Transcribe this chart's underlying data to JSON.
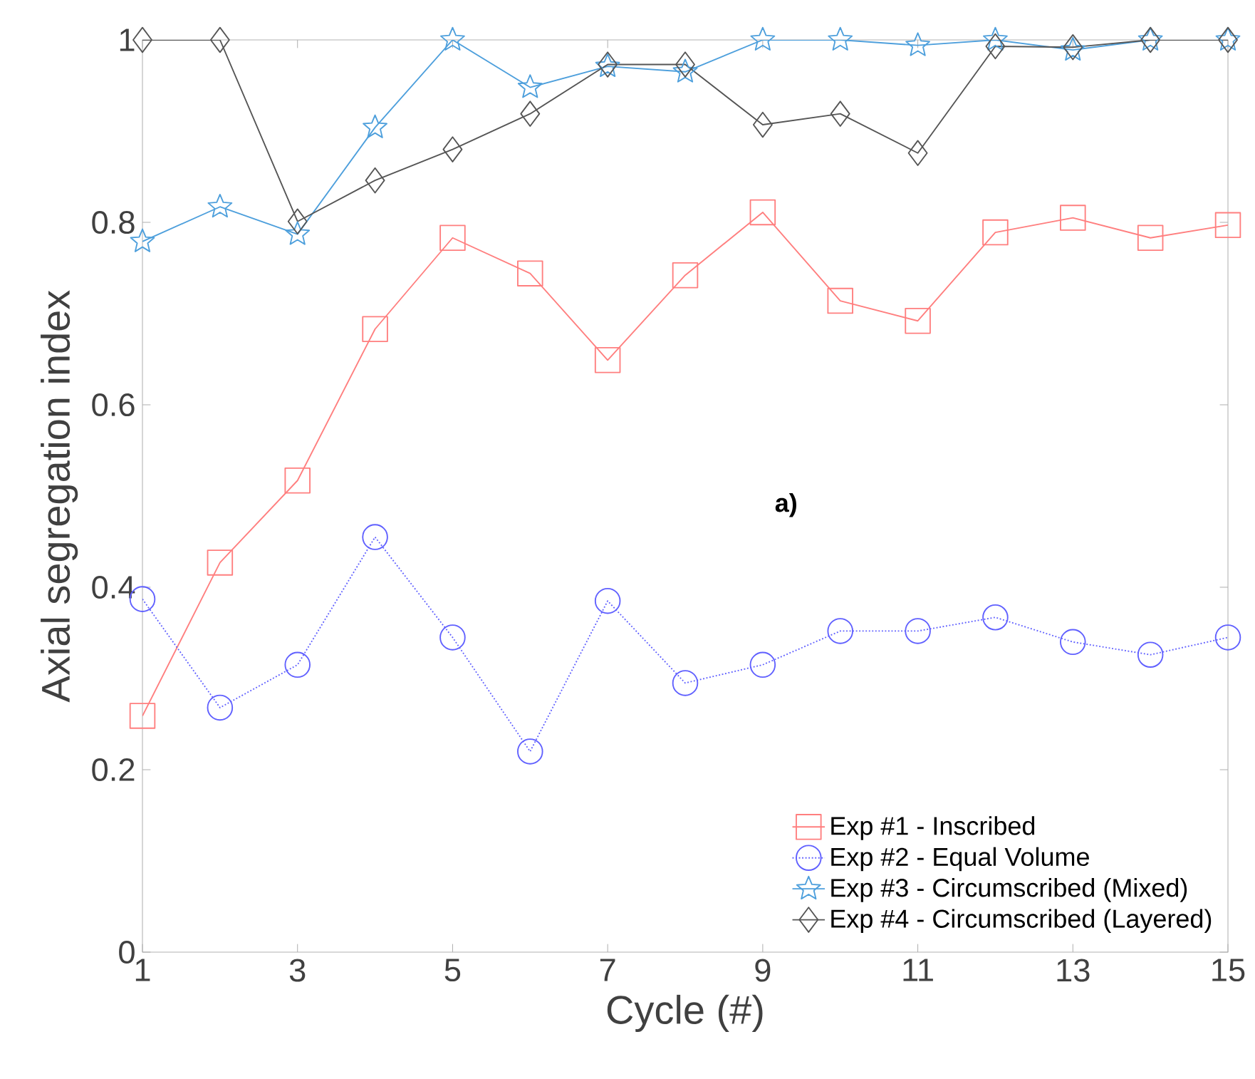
{
  "chart_data": {
    "type": "line",
    "xlabel": "Cycle (#)",
    "ylabel": "Axial segregation index",
    "annotations": [
      "a)"
    ],
    "x": [
      1,
      2,
      3,
      4,
      5,
      6,
      7,
      8,
      9,
      10,
      11,
      12,
      13,
      14,
      15
    ],
    "series": [
      {
        "name": "Exp #1 - Inscribed",
        "color": "#ff7f7f",
        "marker": "square",
        "line_style": "solid",
        "values": [
          0.259,
          0.427,
          0.517,
          0.683,
          0.783,
          0.744,
          0.649,
          0.742,
          0.811,
          0.714,
          0.692,
          0.789,
          0.805,
          0.783,
          0.797
        ]
      },
      {
        "name": "Exp #2 - Equal Volume",
        "color": "#6060ff",
        "marker": "circle",
        "line_style": "dotted",
        "values": [
          0.387,
          0.268,
          0.315,
          0.455,
          0.345,
          0.22,
          0.385,
          0.295,
          0.315,
          0.352,
          0.352,
          0.367,
          0.34,
          0.326,
          0.345
        ]
      },
      {
        "name": "Exp #3 - Circumscribed (Mixed)",
        "color": "#4d9fdc",
        "marker": "star",
        "line_style": "solid",
        "values": [
          0.779,
          0.817,
          0.787,
          0.904,
          1.0,
          0.948,
          0.971,
          0.965,
          1.0,
          1.0,
          0.994,
          1.0,
          0.989,
          1.0,
          1.0
        ]
      },
      {
        "name": "Exp #4 - Circumscribed (Layered)",
        "color": "#555555",
        "marker": "diamond",
        "line_style": "solid",
        "values": [
          1.0,
          1.0,
          0.801,
          0.846,
          0.88,
          0.919,
          0.973,
          0.973,
          0.907,
          0.919,
          0.876,
          0.993,
          0.992,
          1.0,
          1.0
        ]
      }
    ],
    "xlim": [
      1,
      15
    ],
    "xticks": [
      1,
      3,
      5,
      7,
      9,
      11,
      13,
      15
    ],
    "ylim": [
      0,
      1
    ],
    "yticks": [
      0,
      0.2,
      0.4,
      0.6,
      0.8,
      1
    ],
    "legend": "bottom right"
  }
}
